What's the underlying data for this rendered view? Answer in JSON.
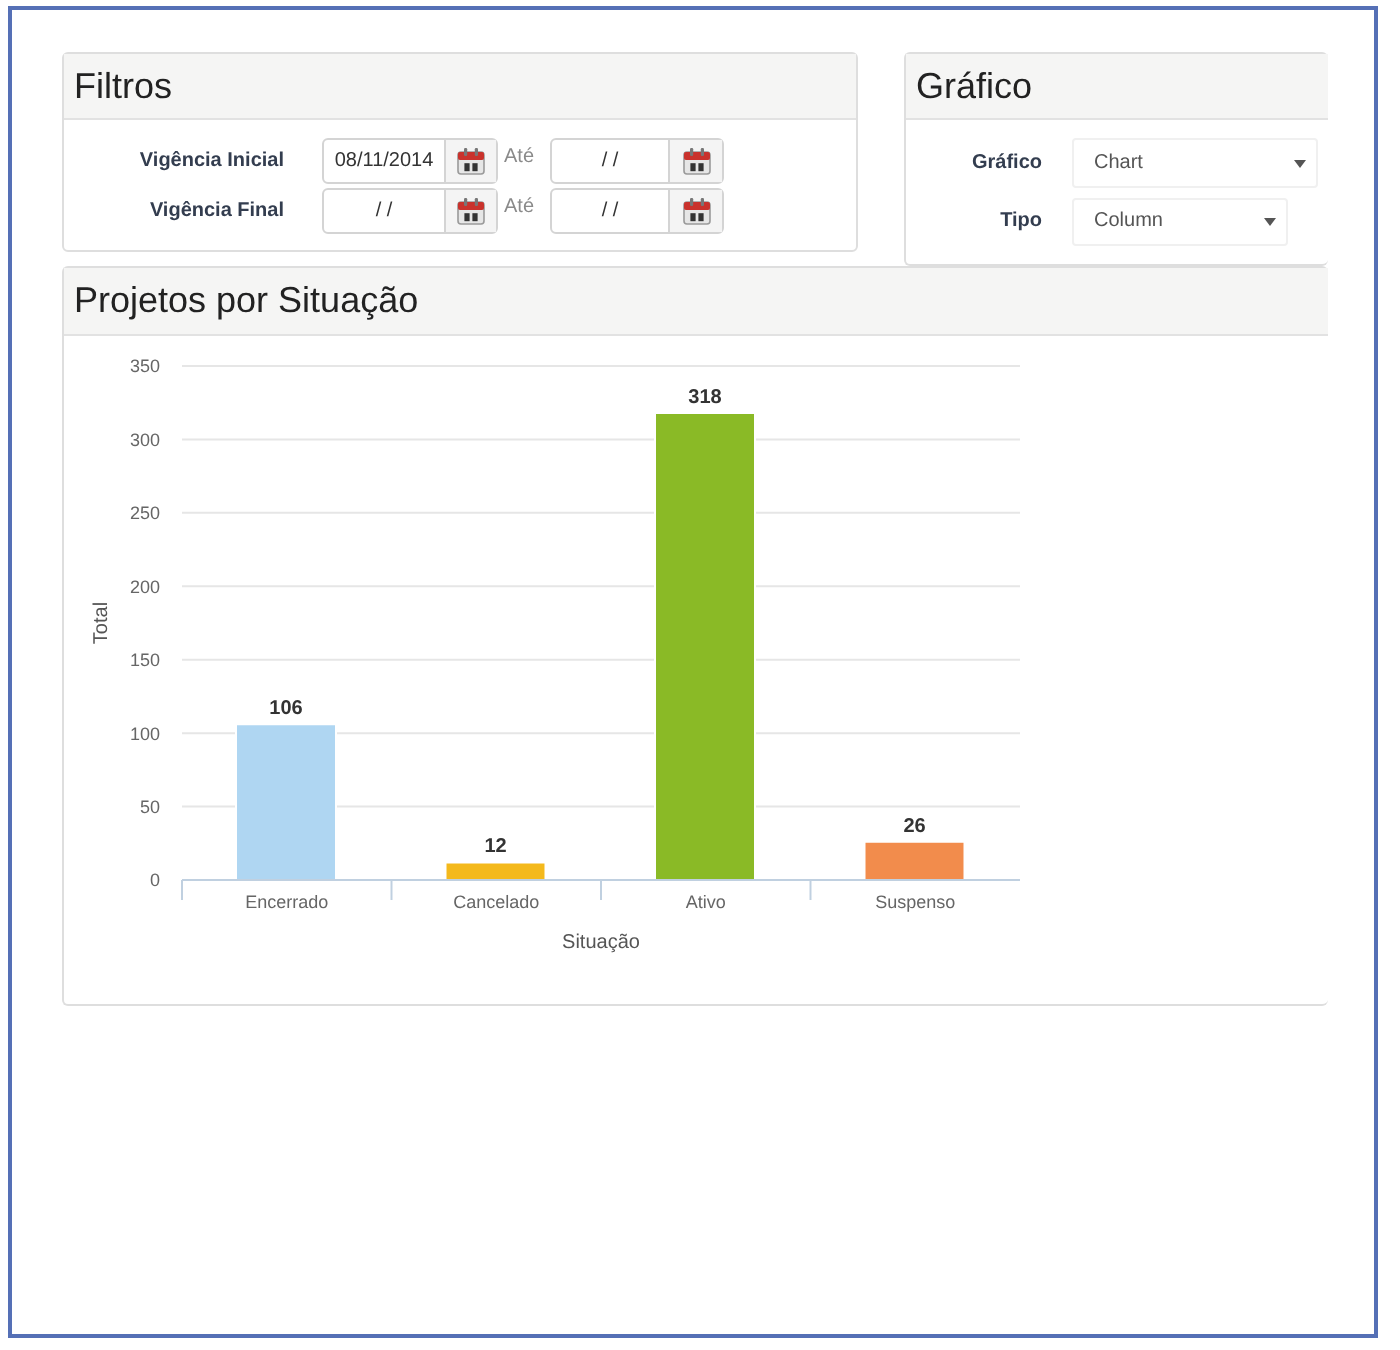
{
  "chart_data": [
    {
      "type": "other",
      "title": "Filtros",
      "annotations": [
        "Vigência Inicial",
        "08/11/2014",
        "Até",
        "/ /",
        "Vigência Final",
        "/ /",
        "Até",
        "/ /"
      ]
    },
    {
      "type": "other",
      "title": "Gráfico",
      "annotations": [
        "Gráfico",
        "Chart",
        "Tipo",
        "Column"
      ]
    },
    {
      "type": "bar",
      "title": "Projetos por Situação",
      "xlabel": "Situação",
      "ylabel": "Total",
      "categories": [
        "Encerrado",
        "Cancelado",
        "Ativo",
        "Suspenso"
      ],
      "values": [
        106,
        12,
        318,
        26
      ],
      "colors": [
        "#afd6f2",
        "#f4b91c",
        "#8aba26",
        "#f28c4c"
      ],
      "ylim": [
        0,
        350
      ],
      "yticks": [
        0,
        50,
        100,
        150,
        200,
        250,
        300,
        350
      ],
      "grid": "y",
      "data_labels": true
    }
  ]
}
